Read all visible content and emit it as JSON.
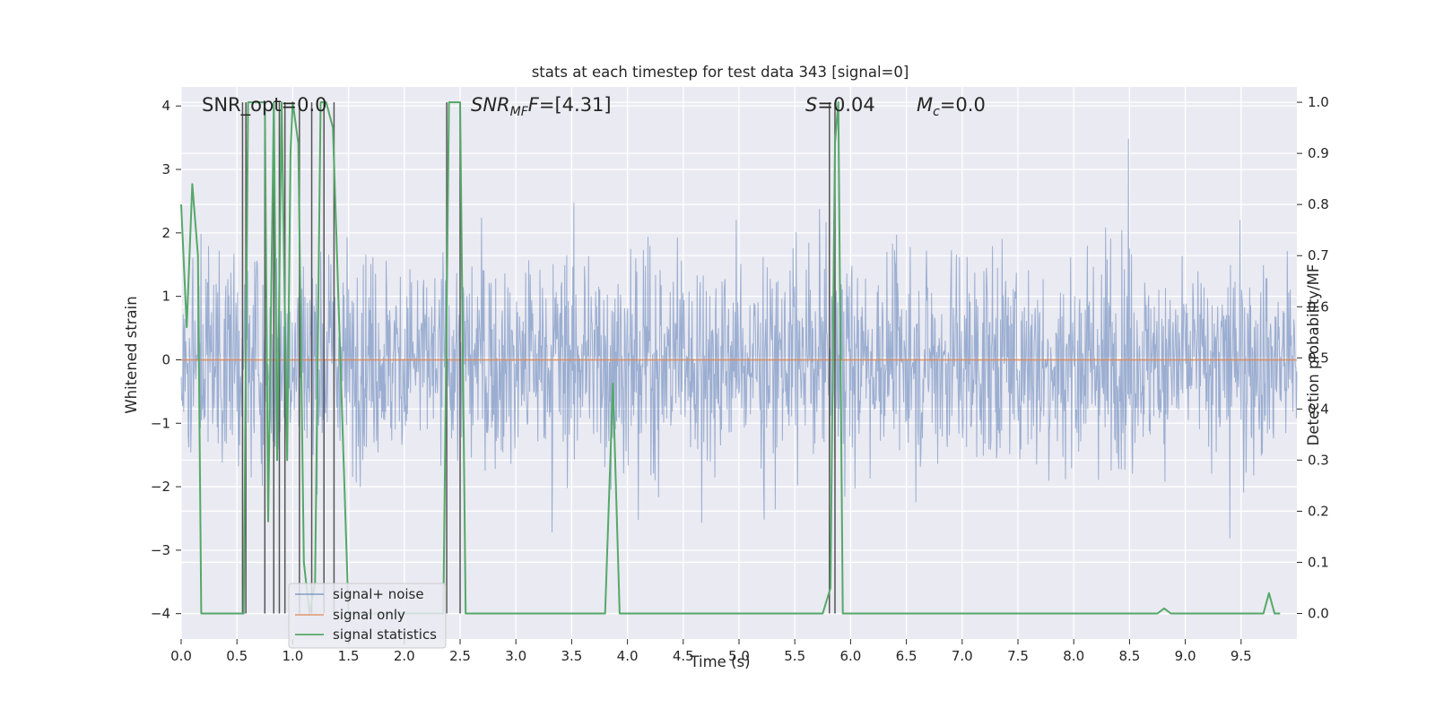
{
  "chart_data": {
    "type": "line",
    "title": "stats at each timestep for test data 343 [signal=0]",
    "xlabel": "Time (s)",
    "ylabel_left": "Whitened strain",
    "ylabel_right": "Detection probability/MF",
    "xlim": [
      0.0,
      10.0
    ],
    "ylim_left": [
      -4.4,
      4.3
    ],
    "ylim_right": [
      -0.05,
      1.03
    ],
    "x_ticks": [
      "0.0",
      "0.5",
      "1.0",
      "1.5",
      "2.0",
      "2.5",
      "3.0",
      "3.5",
      "4.0",
      "4.5",
      "5.0",
      "5.5",
      "6.0",
      "6.5",
      "7.0",
      "7.5",
      "8.0",
      "8.5",
      "9.0",
      "9.5"
    ],
    "x_tick_values": [
      0.0,
      0.5,
      1.0,
      1.5,
      2.0,
      2.5,
      3.0,
      3.5,
      4.0,
      4.5,
      5.0,
      5.5,
      6.0,
      6.5,
      7.0,
      7.5,
      8.0,
      8.5,
      9.0,
      9.5
    ],
    "y_left_ticks": [
      "4",
      "3",
      "2",
      "1",
      "0",
      "−1",
      "−2",
      "−3",
      "−4"
    ],
    "y_left_tick_values": [
      4,
      3,
      2,
      1,
      0,
      -1,
      -2,
      -3,
      -4
    ],
    "y_right_ticks": [
      "1.0",
      "0.9",
      "0.8",
      "0.7",
      "0.6",
      "0.5",
      "0.4",
      "0.3",
      "0.2",
      "0.1",
      "0.0"
    ],
    "y_right_tick_values": [
      1.0,
      0.9,
      0.8,
      0.7,
      0.6,
      0.5,
      0.4,
      0.3,
      0.2,
      0.1,
      0.0
    ],
    "grid": true,
    "legend_position": "lower-left",
    "annotations": {
      "snr_opt": "SNR_opt=0.0",
      "snr_mf_main": "SNR",
      "snr_mf_sub": "MF",
      "snr_mf_value": "=[4.31]",
      "s_main": "S",
      "s_value": "=0.04",
      "mc_main": "M",
      "mc_sub": "c",
      "mc_value": "=0.0"
    },
    "series": [
      {
        "name": "signal+ noise",
        "axis": "left",
        "color": "#4c72b0",
        "description": "noisy whitened strain, roughly within -2 to 2 with spikes",
        "envelope": {
          "typical_min": -1.5,
          "typical_max": 1.5,
          "spike_max": 3.9,
          "spike_min": -4.0
        }
      },
      {
        "name": "signal only",
        "axis": "left",
        "color": "#dd8452",
        "x": [
          0.0,
          10.0
        ],
        "y": [
          0.0,
          0.0
        ]
      },
      {
        "name": "signal statistics",
        "axis": "right",
        "color": "#55a868",
        "x": [
          0.0,
          0.05,
          0.1,
          0.15,
          0.18,
          0.56,
          0.6,
          0.64,
          0.7,
          0.75,
          0.78,
          0.83,
          0.86,
          0.9,
          0.95,
          0.98,
          1.0,
          1.05,
          1.1,
          1.15,
          1.2,
          1.25,
          1.3,
          1.36,
          1.5,
          1.55,
          2.35,
          2.4,
          2.45,
          2.5,
          2.55,
          3.8,
          3.87,
          3.93,
          5.75,
          5.82,
          5.86,
          5.89,
          5.93,
          8.75,
          8.81,
          8.87,
          9.7,
          9.75,
          9.8,
          9.85
        ],
        "y": [
          0.8,
          0.56,
          0.84,
          0.7,
          0.0,
          0.0,
          1.0,
          1.0,
          1.0,
          1.0,
          0.18,
          1.0,
          0.3,
          1.0,
          0.3,
          0.9,
          1.0,
          0.92,
          0.1,
          0.0,
          0.06,
          1.0,
          1.0,
          0.95,
          0.0,
          0.0,
          0.0,
          1.0,
          1.0,
          1.0,
          0.0,
          0.0,
          0.45,
          0.0,
          0.0,
          0.05,
          0.92,
          1.0,
          0.0,
          0.0,
          0.01,
          0.0,
          0.0,
          0.04,
          0.0,
          0.0
        ]
      }
    ],
    "vertical_markers": {
      "color": "#555555",
      "x": [
        0.55,
        0.58,
        0.75,
        0.83,
        0.88,
        0.93,
        1.06,
        1.17,
        1.28,
        1.37,
        2.38,
        2.5,
        5.81,
        5.86
      ],
      "top": 1.0,
      "bottom": 0.0
    }
  },
  "legend": {
    "items": [
      {
        "label": "signal+ noise",
        "color": "#4c72b0"
      },
      {
        "label": "signal only",
        "color": "#dd8452"
      },
      {
        "label": "signal statistics",
        "color": "#55a868"
      }
    ]
  }
}
